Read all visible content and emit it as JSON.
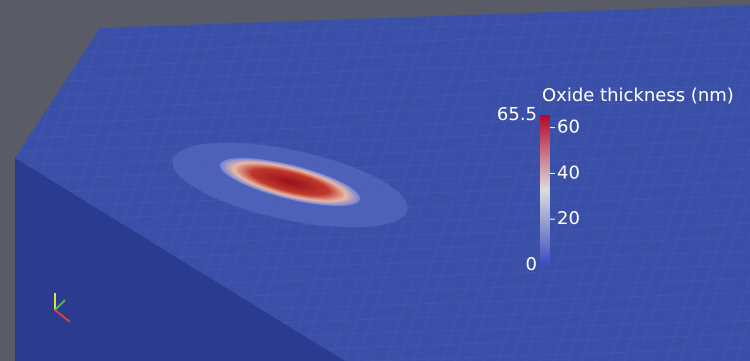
{
  "colorbar": {
    "title": "Oxide thickness (nm)",
    "range": [
      0,
      65.5
    ],
    "ticks": [
      20,
      40,
      60
    ]
  }
}
